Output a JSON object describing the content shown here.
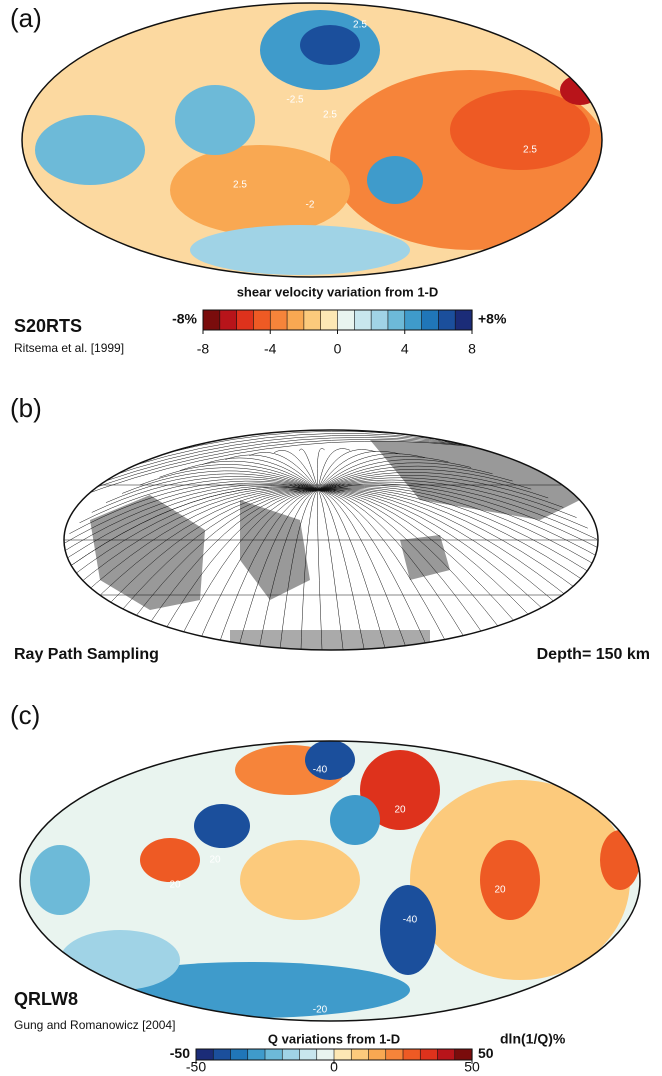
{
  "panels": [
    {
      "label": "(a)",
      "model": "S20RTS",
      "reference": "Ritsema et al. [1999]",
      "contour_labels": [
        "2.5",
        "2.5",
        "-2.5",
        "2.5",
        "-2",
        "2.5"
      ],
      "colorbar": {
        "title": "shear velocity variation from 1-D",
        "min_label": "-8%",
        "max_label": "+8%",
        "range": [
          -8,
          8
        ],
        "ticks": [
          -8,
          -4,
          0,
          4,
          8
        ],
        "colors": [
          "#7a0c0c",
          "#b8141a",
          "#de321c",
          "#ee5a24",
          "#f6843a",
          "#f9a852",
          "#fcca7c",
          "#fde8b4",
          "#e9f4ef",
          "#c8e6ee",
          "#a0d3e6",
          "#6dbad8",
          "#3f9bcb",
          "#2076b8",
          "#1b4f9c",
          "#1b2c78"
        ]
      }
    },
    {
      "label": "(b)",
      "title": "Ray Path Sampling",
      "depth": "Depth= 150 km"
    },
    {
      "label": "(c)",
      "model": "QRLW8",
      "reference": "Gung and Romanowicz [2004]",
      "contour_labels": [
        "-40",
        "20",
        "20",
        "20",
        "-40",
        "20",
        "-20"
      ],
      "colorbar": {
        "title": "Q variations from 1-D",
        "min_label": "-50",
        "max_label": "50",
        "unit": "dln(1/Q)%",
        "range": [
          -50,
          50
        ],
        "ticks": [
          -50,
          0,
          50
        ],
        "colors": [
          "#1b2c78",
          "#1b4f9c",
          "#2076b8",
          "#3f9bcb",
          "#6dbad8",
          "#a0d3e6",
          "#c8e6ee",
          "#e9f4ef",
          "#fde8b4",
          "#fcca7c",
          "#f9a852",
          "#f6843a",
          "#ee5a24",
          "#de321c",
          "#b8141a",
          "#7a0c0c"
        ]
      }
    }
  ]
}
